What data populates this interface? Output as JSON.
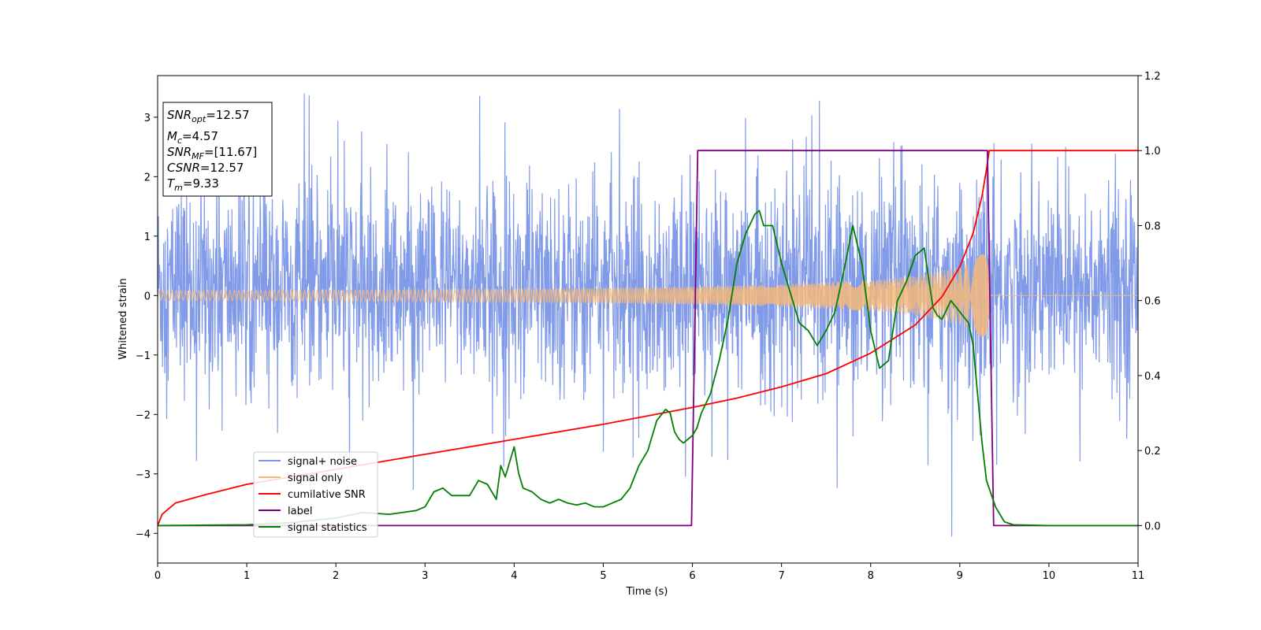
{
  "chart_data": {
    "type": "line",
    "xlabel": "Time (s)",
    "ylabel": "Whitened strain",
    "xlim": [
      0,
      11
    ],
    "ylim_left": [
      -4.5,
      3.7
    ],
    "ylim_right": [
      -0.1,
      1.2
    ],
    "x_ticks": [
      "0",
      "1",
      "2",
      "3",
      "4",
      "5",
      "6",
      "7",
      "8",
      "9",
      "10",
      "11"
    ],
    "y_left_ticks": [
      "3",
      "2",
      "1",
      "0",
      "−1",
      "−2",
      "−3",
      "−4"
    ],
    "y_left_tick_values": [
      3,
      2,
      1,
      0,
      -1,
      -2,
      -3,
      -4
    ],
    "y_right_ticks": [
      "1.2",
      "1.0",
      "0.8",
      "0.6",
      "0.4",
      "0.2",
      "0.0"
    ],
    "y_right_tick_values": [
      1.2,
      1.0,
      0.8,
      0.6,
      0.4,
      0.2,
      0.0
    ],
    "grid": false,
    "legend_position": "lower-left",
    "annotation": {
      "snr_opt": {
        "main": "SNR",
        "sub": "opt",
        "value": "=12.57"
      },
      "mc": {
        "main": "M",
        "sub": "c",
        "value": "=4.57"
      },
      "snr_mf": {
        "main": "SNR",
        "sub": "MF",
        "value": "=[11.67]"
      },
      "csnr": {
        "main": "CSNR",
        "value": "=12.57"
      },
      "tm": {
        "main": "T",
        "sub": "m",
        "value": "=9.33"
      }
    },
    "series": [
      {
        "name": "signal+ noise",
        "color": "#7b96e8",
        "axis": "left",
        "description_values": {
          "envelope_typical": [
            -1.5,
            2.3
          ],
          "peaks": [
            -4.2,
            3.4
          ]
        }
      },
      {
        "name": "signal only",
        "color": "#f5b97a",
        "axis": "left",
        "envelope": {
          "x": [
            0,
            2,
            4,
            6,
            7,
            8,
            8.5,
            9,
            9.2,
            9.33,
            9.35,
            11
          ],
          "amp": [
            0.08,
            0.09,
            0.11,
            0.15,
            0.19,
            0.26,
            0.33,
            0.48,
            0.65,
            0.78,
            0.0,
            0.0
          ]
        }
      },
      {
        "name": "cumilative SNR",
        "color": "#ff0000",
        "axis": "right",
        "x": [
          0,
          0.05,
          0.2,
          0.5,
          1,
          1.5,
          2,
          3,
          4,
          5,
          6,
          6.5,
          7,
          7.5,
          8,
          8.5,
          8.8,
          9.0,
          9.15,
          9.25,
          9.3,
          9.33,
          11
        ],
        "y": [
          0.0,
          0.03,
          0.06,
          0.08,
          0.11,
          0.13,
          0.15,
          0.19,
          0.23,
          0.27,
          0.315,
          0.34,
          0.37,
          0.405,
          0.46,
          0.535,
          0.61,
          0.69,
          0.78,
          0.88,
          0.95,
          1.0,
          1.0
        ]
      },
      {
        "name": "label",
        "color": "#800080",
        "axis": "right",
        "x": [
          0,
          5.99,
          6.06,
          9.31,
          9.38,
          11
        ],
        "y": [
          0,
          0,
          1,
          1,
          0,
          0
        ]
      },
      {
        "name": "signal statistics",
        "color": "#008000",
        "axis": "right",
        "x": [
          0,
          1.0,
          1.5,
          2.0,
          2.3,
          2.6,
          2.9,
          3.0,
          3.1,
          3.2,
          3.3,
          3.5,
          3.6,
          3.7,
          3.8,
          3.85,
          3.9,
          4.0,
          4.05,
          4.1,
          4.2,
          4.3,
          4.4,
          4.5,
          4.6,
          4.7,
          4.8,
          4.9,
          5.0,
          5.1,
          5.2,
          5.3,
          5.4,
          5.5,
          5.6,
          5.7,
          5.75,
          5.8,
          5.85,
          5.9,
          6.0,
          6.05,
          6.1,
          6.2,
          6.3,
          6.4,
          6.5,
          6.6,
          6.7,
          6.75,
          6.8,
          6.9,
          7.0,
          7.1,
          7.2,
          7.3,
          7.4,
          7.5,
          7.6,
          7.7,
          7.8,
          7.9,
          8.0,
          8.1,
          8.2,
          8.3,
          8.4,
          8.5,
          8.6,
          8.7,
          8.75,
          8.8,
          8.9,
          9.0,
          9.1,
          9.15,
          9.2,
          9.25,
          9.3,
          9.4,
          9.5,
          9.6,
          10.0,
          11.0
        ],
        "y": [
          0.0,
          0.002,
          0.008,
          0.02,
          0.035,
          0.03,
          0.04,
          0.05,
          0.09,
          0.1,
          0.08,
          0.08,
          0.12,
          0.11,
          0.07,
          0.16,
          0.13,
          0.21,
          0.14,
          0.1,
          0.09,
          0.07,
          0.06,
          0.07,
          0.06,
          0.055,
          0.06,
          0.05,
          0.05,
          0.06,
          0.07,
          0.1,
          0.16,
          0.2,
          0.28,
          0.31,
          0.3,
          0.25,
          0.23,
          0.22,
          0.24,
          0.26,
          0.3,
          0.35,
          0.44,
          0.55,
          0.7,
          0.78,
          0.83,
          0.84,
          0.8,
          0.8,
          0.7,
          0.62,
          0.54,
          0.52,
          0.48,
          0.52,
          0.57,
          0.68,
          0.8,
          0.7,
          0.52,
          0.42,
          0.44,
          0.6,
          0.65,
          0.72,
          0.74,
          0.58,
          0.56,
          0.55,
          0.6,
          0.57,
          0.54,
          0.48,
          0.35,
          0.22,
          0.12,
          0.05,
          0.01,
          0.002,
          0.0,
          0.0
        ]
      }
    ]
  }
}
